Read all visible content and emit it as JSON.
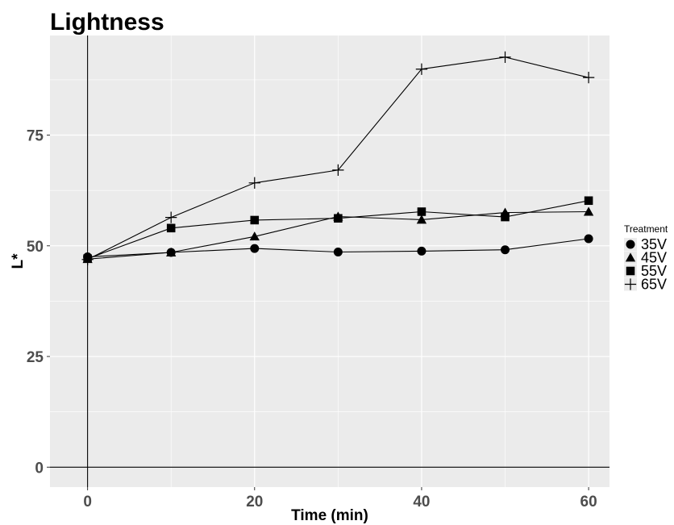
{
  "chart_data": {
    "type": "line",
    "title": "Lightness",
    "xlabel": "Time (min)",
    "ylabel": "L*",
    "xlim": [
      -4.5,
      62.5
    ],
    "ylim": [
      -4.5,
      97.5
    ],
    "x_ticks": [
      0,
      20,
      40,
      60
    ],
    "x_minor_grid": [
      10,
      30,
      50
    ],
    "y_ticks": [
      0,
      25,
      50,
      75
    ],
    "y_minor_grid": [
      12.5,
      37.5,
      62.5,
      87.5
    ],
    "x_tick_labels": [
      "0",
      "20",
      "40",
      "60"
    ],
    "y_tick_labels": [
      "0",
      "25",
      "50",
      "75"
    ],
    "reference_lines": {
      "hline": 0,
      "vline": 0
    },
    "grid": true,
    "legend": {
      "title": "Treatment",
      "position": "right"
    },
    "x": [
      0,
      10,
      20,
      30,
      40,
      50,
      60
    ],
    "series": [
      {
        "name": "35V",
        "marker": "circle",
        "values": [
          47.5,
          48.5,
          49.4,
          48.6,
          48.8,
          49.1,
          51.6
        ]
      },
      {
        "name": "45V",
        "marker": "triangle",
        "values": [
          47.0,
          48.5,
          52.1,
          56.6,
          55.9,
          57.5,
          57.7
        ]
      },
      {
        "name": "55V",
        "marker": "square",
        "values": [
          47.1,
          54.0,
          55.8,
          56.2,
          57.7,
          56.5,
          60.2
        ]
      },
      {
        "name": "65V",
        "marker": "plus",
        "values": [
          46.9,
          56.4,
          64.2,
          67.1,
          89.9,
          92.6,
          88.0
        ]
      }
    ],
    "colors": {
      "panel": "#ebebeb",
      "grid": "#ffffff",
      "ink": "#000000",
      "tick_text": "#4d4d4d"
    }
  }
}
